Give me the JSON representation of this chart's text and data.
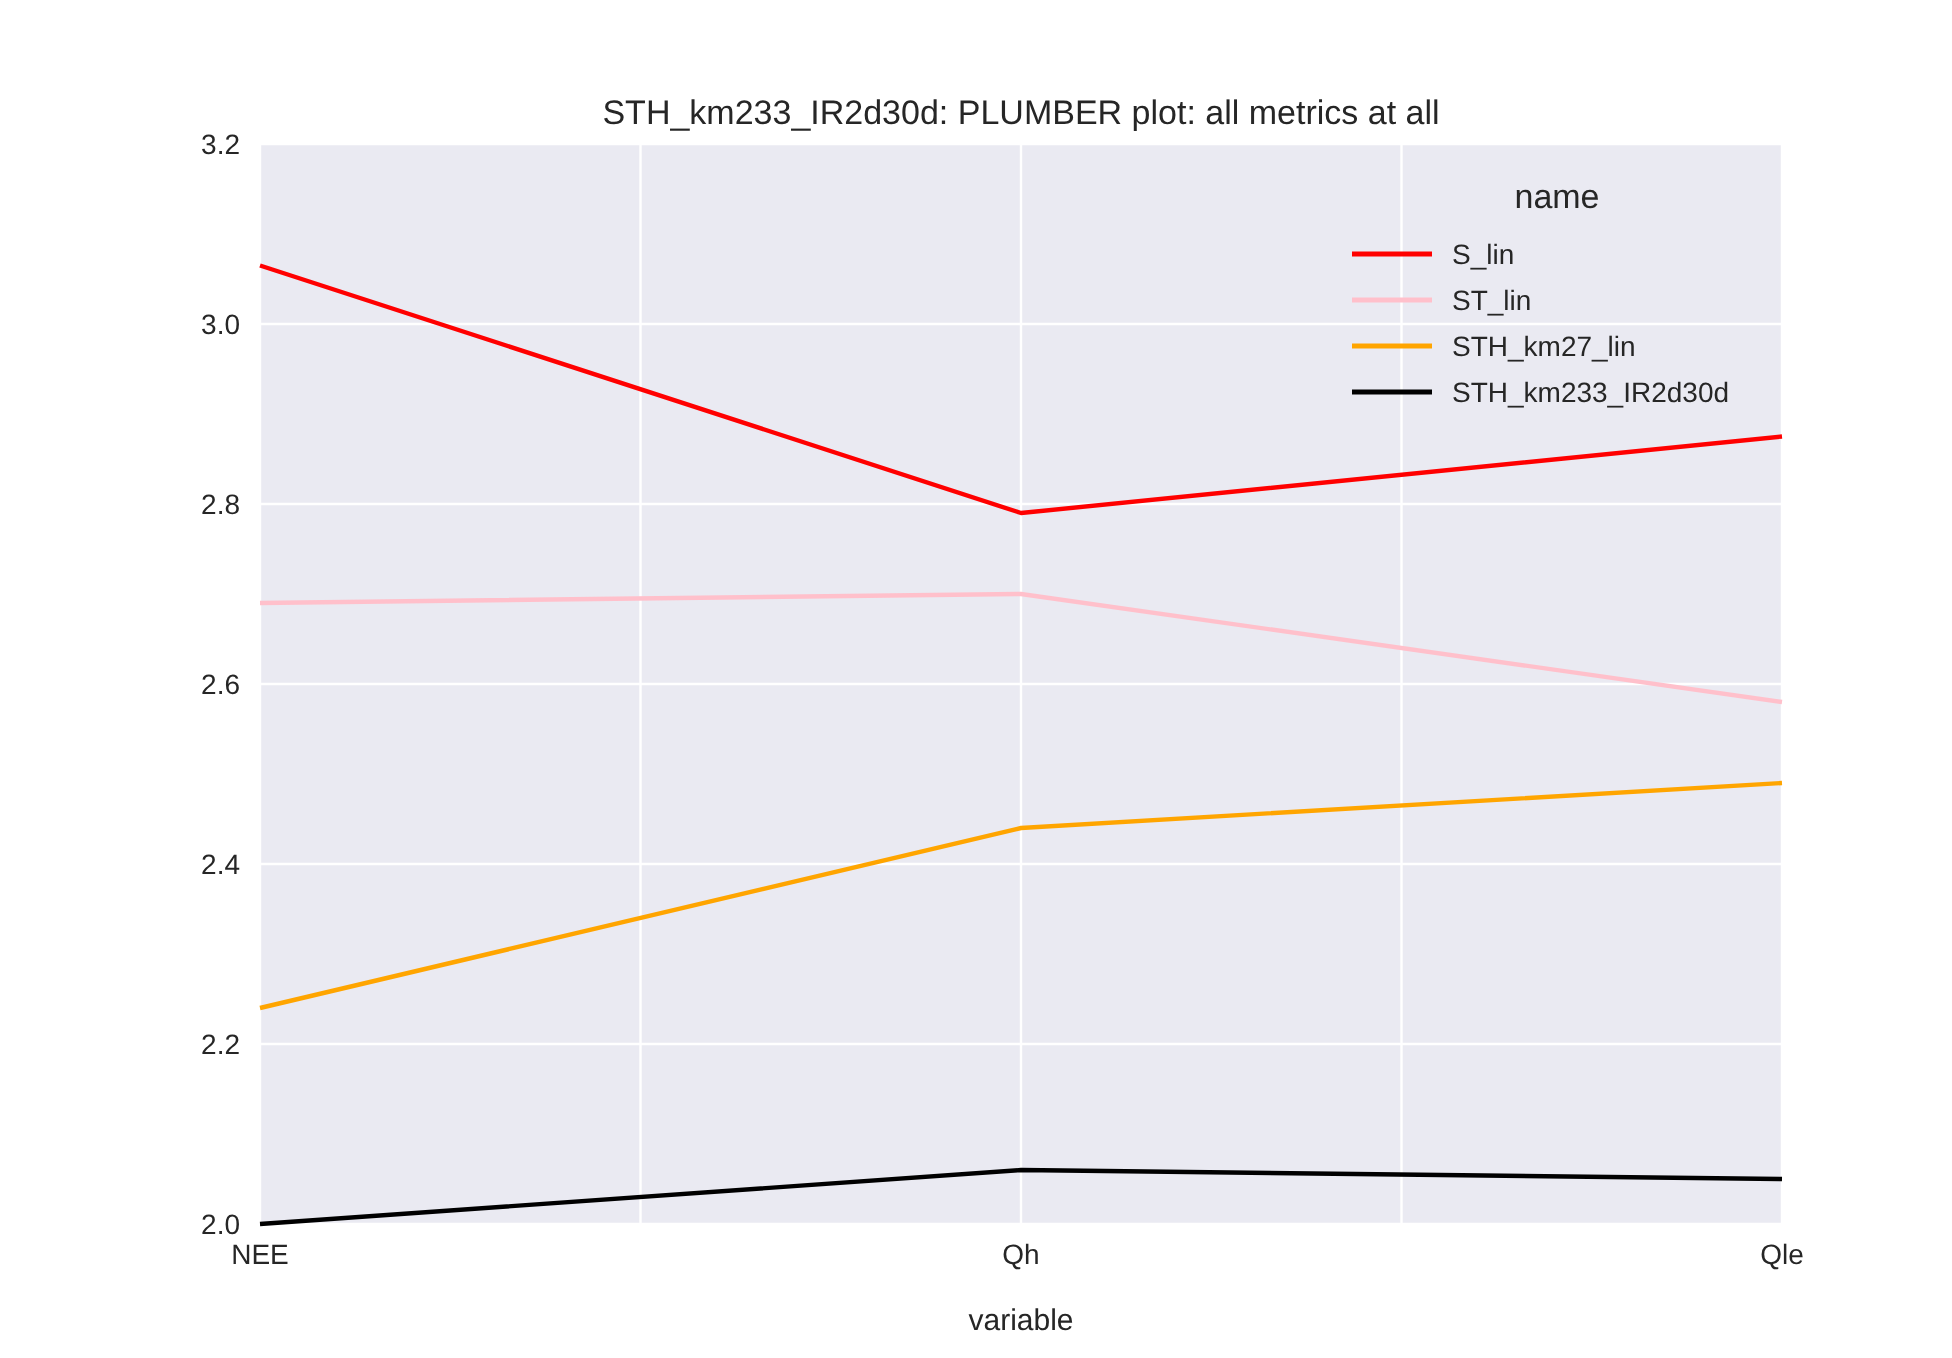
{
  "chart_data": {
    "type": "line",
    "title": "STH_km233_IR2d30d: PLUMBER plot: all metrics at all",
    "xlabel": "variable",
    "legend_title": "name",
    "legend": "top right",
    "grid": true,
    "categories": [
      "NEE",
      "Qh",
      "Qle"
    ],
    "ylim": [
      2.0,
      3.2
    ],
    "yticks": [
      {
        "value": 2.0,
        "label": "2.0"
      },
      {
        "value": 2.2,
        "label": "2.2"
      },
      {
        "value": 2.4,
        "label": "2.4"
      },
      {
        "value": 2.6,
        "label": "2.6"
      },
      {
        "value": 2.8,
        "label": "2.8"
      },
      {
        "value": 3.0,
        "label": "3.0"
      },
      {
        "value": 3.2,
        "label": "3.2"
      }
    ],
    "series": [
      {
        "name": "S_lin",
        "color": "#ff0000",
        "values": [
          3.065,
          2.79,
          2.875
        ]
      },
      {
        "name": "ST_lin",
        "color": "#ffc0cb",
        "values": [
          2.69,
          2.7,
          2.58
        ]
      },
      {
        "name": "STH_km27_lin",
        "color": "#ffa500",
        "values": [
          2.24,
          2.44,
          2.49
        ]
      },
      {
        "name": "STH_km233_IR2d30d",
        "color": "#000000",
        "values": [
          2.0,
          2.06,
          2.05
        ]
      }
    ]
  }
}
